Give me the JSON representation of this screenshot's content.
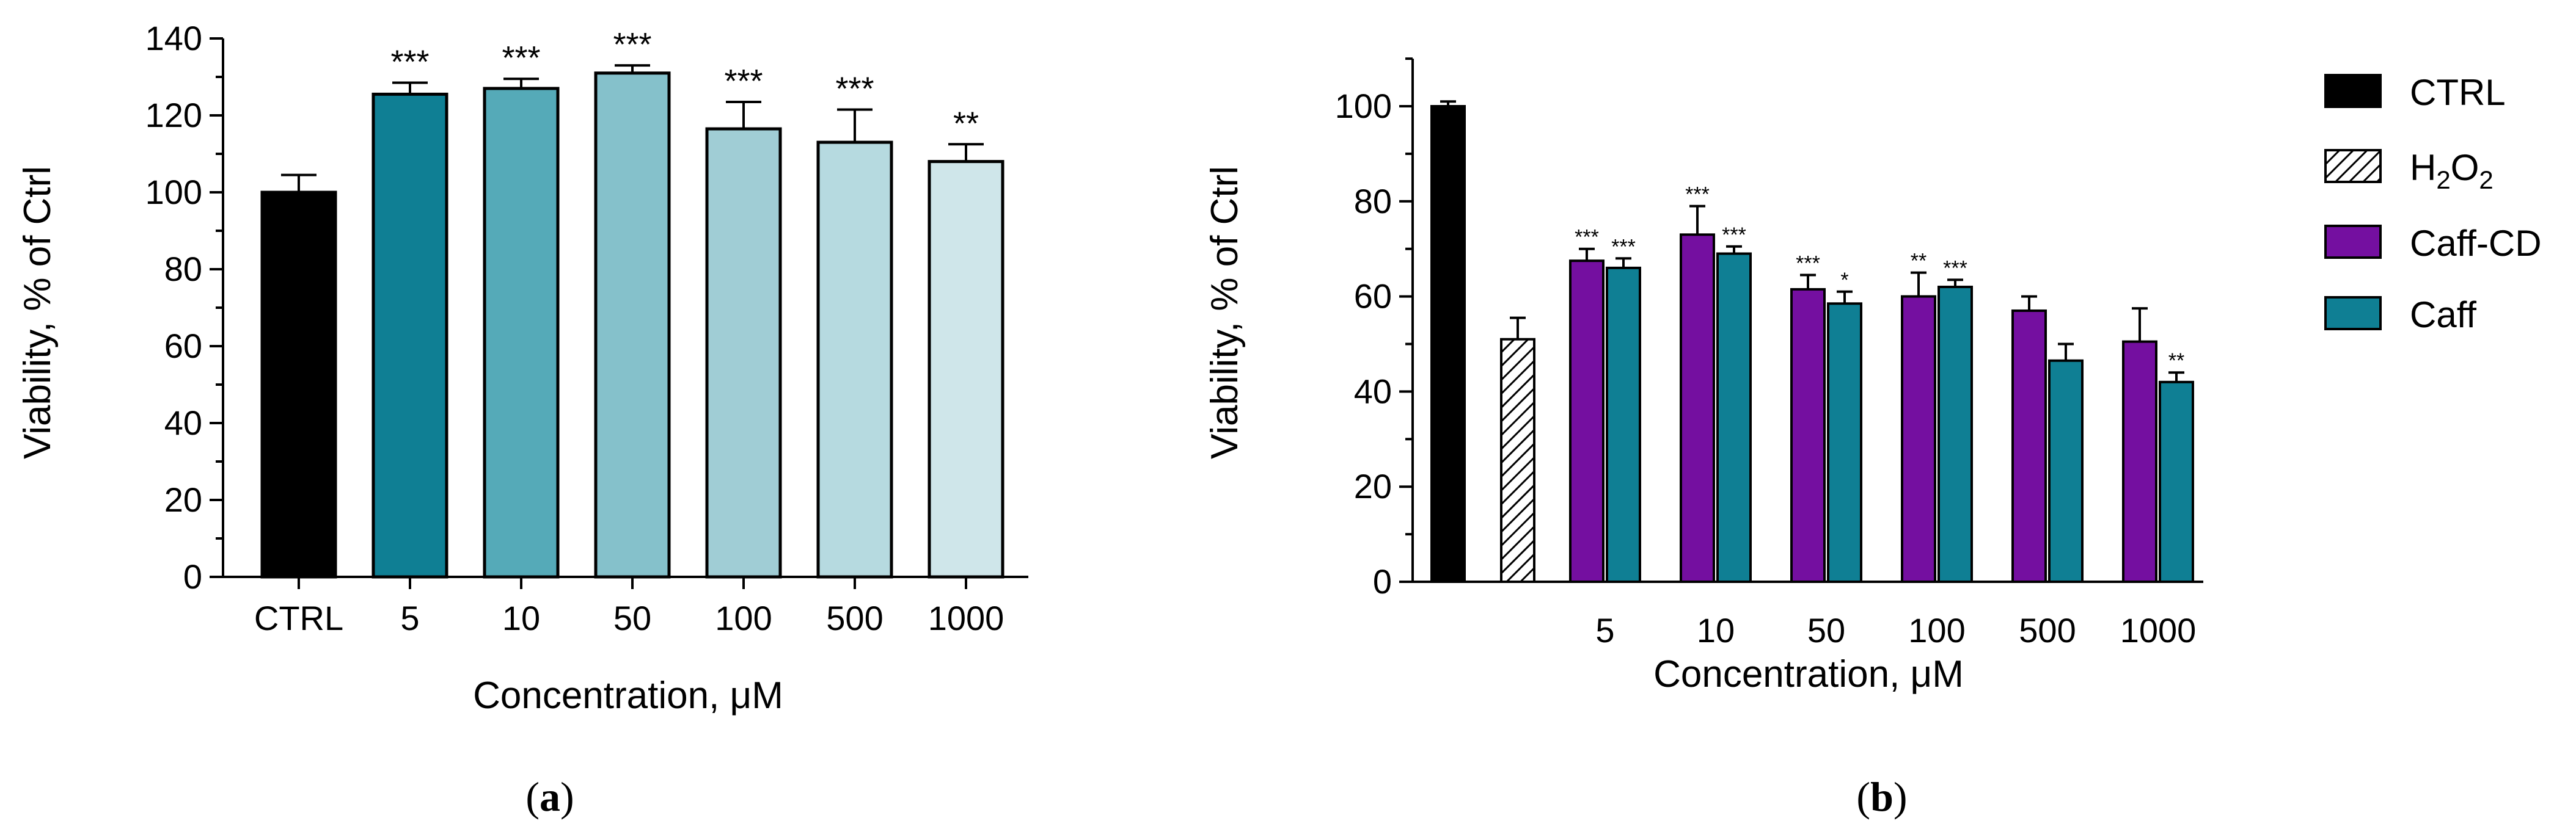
{
  "chart_data": [
    {
      "type": "bar",
      "panel_label": "a",
      "title": "",
      "xlabel": "Concentration, μM",
      "ylabel": "Viability, % of Ctrl",
      "ylim": [
        0,
        140
      ],
      "yticks": [
        0,
        20,
        40,
        60,
        80,
        100,
        120,
        140
      ],
      "grid": false,
      "categories": [
        "CTRL",
        "5",
        "10",
        "50",
        "100",
        "500",
        "1000"
      ],
      "values": [
        100,
        125.5,
        127,
        131,
        116.5,
        113,
        108
      ],
      "errors": [
        4.5,
        3,
        2.5,
        2,
        7,
        8.5,
        4.5
      ],
      "significance": [
        "",
        "***",
        "***",
        "***",
        "***",
        "***",
        "**"
      ],
      "colors": [
        "#000000",
        "#0f7f94",
        "#55aab8",
        "#85c1cb",
        "#a0cdd5",
        "#b6dae0",
        "#cfe6ea"
      ]
    },
    {
      "type": "bar",
      "panel_label": "b",
      "title": "",
      "xlabel": "Concentration, μM",
      "ylabel": "Viability, % of Ctrl",
      "ylim": [
        0,
        110
      ],
      "yticks": [
        0,
        20,
        40,
        60,
        80,
        100
      ],
      "grid": false,
      "legend_position": "right",
      "legend": [
        {
          "name": "CTRL",
          "color": "#000000",
          "pattern": "solid"
        },
        {
          "name": "H",
          "sub1": "2",
          "mid": "O",
          "sub2": "2",
          "color": "#ffffff",
          "pattern": "hatch"
        },
        {
          "name": "Caff-CD",
          "color": "#740fa0",
          "pattern": "solid"
        },
        {
          "name": "Caff",
          "color": "#0f7f94",
          "pattern": "solid"
        }
      ],
      "controls": [
        {
          "name": "CTRL",
          "value": 100,
          "error": 1
        },
        {
          "name": "H2O2",
          "value": 51,
          "error": 4.5
        }
      ],
      "categories": [
        "5",
        "10",
        "50",
        "100",
        "500",
        "1000"
      ],
      "series": [
        {
          "name": "Caff-CD",
          "values": [
            67.5,
            73,
            61.5,
            60,
            57,
            50.5
          ],
          "errors": [
            2.5,
            6,
            3,
            5,
            3,
            7
          ],
          "significance": [
            "***",
            "***",
            "***",
            "**",
            "",
            ""
          ]
        },
        {
          "name": "Caff",
          "values": [
            66,
            69,
            58.5,
            62,
            46.5,
            42
          ],
          "errors": [
            2,
            1.5,
            2.5,
            1.5,
            3.5,
            2
          ],
          "significance": [
            "***",
            "***",
            "*",
            "***",
            "",
            "**"
          ]
        }
      ]
    }
  ]
}
